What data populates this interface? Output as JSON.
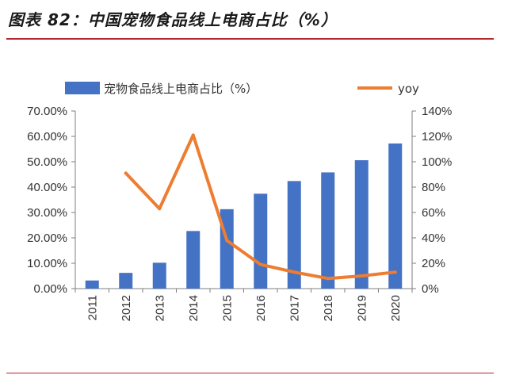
{
  "figure": {
    "title": "图表 82：中国宠物食品线上电商占比（%）"
  },
  "chart_data": {
    "type": "bar+line",
    "title": "中国宠物食品线上电商占比（%）",
    "categories": [
      "2011",
      "2012",
      "2013",
      "2014",
      "2015",
      "2016",
      "2017",
      "2018",
      "2019",
      "2020"
    ],
    "series": [
      {
        "name": "宠物食品线上电商占比（%）",
        "type": "bar",
        "axis": "left",
        "color": "#4472c4",
        "values": [
          3.2,
          6.2,
          10.2,
          22.7,
          31.3,
          37.4,
          42.4,
          45.8,
          50.6,
          57.2
        ]
      },
      {
        "name": "yoy",
        "type": "line",
        "axis": "right",
        "color": "#ed7d31",
        "values": [
          null,
          91,
          63,
          121,
          38,
          19,
          13,
          8,
          10,
          13
        ]
      }
    ],
    "y_left": {
      "lim": [
        0,
        70
      ],
      "ticks": [
        0,
        10,
        20,
        30,
        40,
        50,
        60,
        70
      ],
      "tick_labels": [
        "0.00%",
        "10.00%",
        "20.00%",
        "30.00%",
        "40.00%",
        "50.00%",
        "60.00%",
        "70.00%"
      ]
    },
    "y_right": {
      "lim": [
        0,
        140
      ],
      "ticks": [
        0,
        20,
        40,
        60,
        80,
        100,
        120,
        140
      ],
      "tick_labels": [
        "0%",
        "20%",
        "40%",
        "60%",
        "80%",
        "100%",
        "120%",
        "140%"
      ]
    },
    "legend": {
      "position": "top",
      "bar_label": "宠物食品线上电商占比（%）",
      "line_label": "yoy"
    }
  }
}
